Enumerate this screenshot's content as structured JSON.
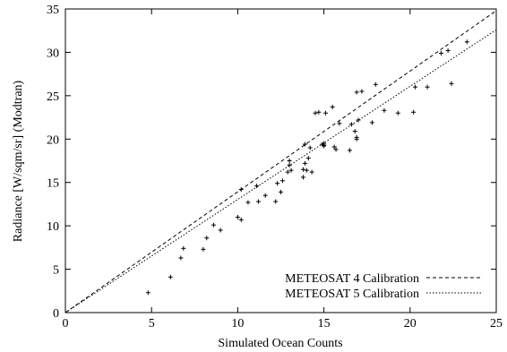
{
  "chart_data": {
    "type": "scatter",
    "xlabel": "Simulated Ocean Counts",
    "ylabel": "Radiance [W/sqm/sr] (Modtran)",
    "xlim": [
      0,
      25
    ],
    "ylim": [
      0,
      35
    ],
    "xticks": [
      0,
      5,
      10,
      15,
      20,
      25
    ],
    "yticks": [
      0,
      5,
      10,
      15,
      20,
      25,
      30,
      35
    ],
    "grid": false,
    "legend_position": "bottom-right",
    "points": {
      "marker": "plus",
      "x": [
        4.8,
        6.1,
        6.7,
        6.85,
        8.0,
        8.2,
        8.6,
        9.0,
        10.0,
        10.2,
        10.2,
        10.6,
        11.1,
        11.2,
        11.6,
        12.2,
        12.3,
        12.5,
        12.6,
        12.9,
        13.0,
        13.0,
        13.1,
        13.8,
        13.8,
        13.9,
        13.9,
        14.0,
        14.1,
        14.2,
        14.3,
        14.5,
        14.7,
        14.9,
        15.0,
        15.0,
        15.0,
        15.1,
        15.5,
        15.6,
        15.7,
        15.9,
        16.5,
        16.6,
        16.8,
        16.9,
        16.9,
        16.9,
        17.0,
        17.2,
        17.8,
        18.0,
        18.5,
        19.3,
        20.2,
        20.3,
        21.0,
        21.8,
        22.2,
        22.4,
        23.3
      ],
      "y": [
        2.3,
        4.1,
        6.3,
        7.4,
        7.3,
        8.6,
        10.1,
        9.5,
        11.0,
        14.2,
        10.7,
        12.7,
        14.6,
        12.8,
        13.5,
        12.8,
        14.9,
        13.9,
        15.2,
        16.2,
        17.5,
        17.0,
        16.4,
        15.6,
        16.5,
        17.2,
        19.4,
        16.4,
        17.8,
        19.0,
        16.2,
        23.0,
        23.1,
        19.4,
        19.2,
        19.5,
        19.3,
        23.0,
        23.7,
        19.1,
        18.8,
        21.8,
        18.7,
        21.7,
        20.9,
        20.0,
        20.2,
        25.4,
        22.2,
        25.5,
        21.9,
        26.3,
        23.3,
        23.0,
        23.1,
        26.0,
        26.0,
        29.9,
        30.2,
        26.4,
        31.2
      ]
    },
    "series": [
      {
        "name": "METEOSAT 4 Calibration",
        "style": "dashed",
        "x": [
          0,
          25
        ],
        "y": [
          0,
          34.8
        ]
      },
      {
        "name": "METEOSAT 5 Calibration",
        "style": "dotted",
        "x": [
          0,
          25
        ],
        "y": [
          0,
          32.6
        ]
      }
    ]
  }
}
